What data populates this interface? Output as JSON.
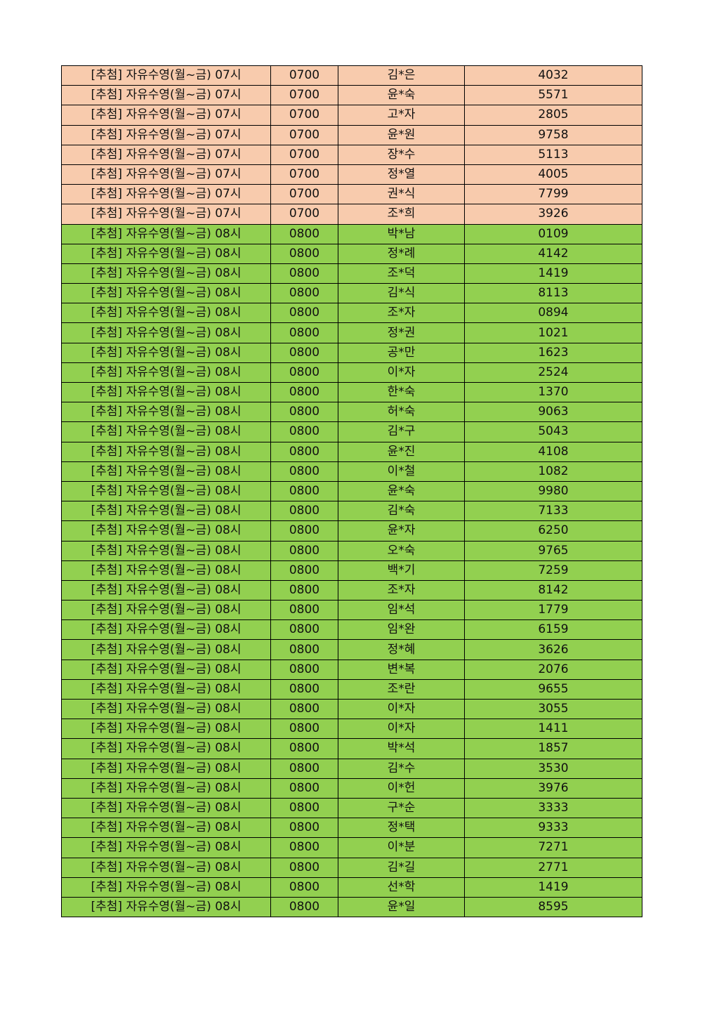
{
  "colors": {
    "group_0700": "#F8CBAD",
    "group_0800": "#92D050"
  },
  "rows": [
    [
      "[추첨] 자유수영(월~금) 07시",
      "0700",
      "김*은",
      "4032"
    ],
    [
      "[추첨] 자유수영(월~금) 07시",
      "0700",
      "윤*숙",
      "5571"
    ],
    [
      "[추첨] 자유수영(월~금) 07시",
      "0700",
      "고*자",
      "2805"
    ],
    [
      "[추첨] 자유수영(월~금) 07시",
      "0700",
      "윤*원",
      "9758"
    ],
    [
      "[추첨] 자유수영(월~금) 07시",
      "0700",
      "장*수",
      "5113"
    ],
    [
      "[추첨] 자유수영(월~금) 07시",
      "0700",
      "정*열",
      "4005"
    ],
    [
      "[추첨] 자유수영(월~금) 07시",
      "0700",
      "권*식",
      "7799"
    ],
    [
      "[추첨] 자유수영(월~금) 07시",
      "0700",
      "조*희",
      "3926"
    ],
    [
      "[추첨] 자유수영(월~금) 08시",
      "0800",
      "박*남",
      "0109"
    ],
    [
      "[추첨] 자유수영(월~금) 08시",
      "0800",
      "정*례",
      "4142"
    ],
    [
      "[추첨] 자유수영(월~금) 08시",
      "0800",
      "조*덕",
      "1419"
    ],
    [
      "[추첨] 자유수영(월~금) 08시",
      "0800",
      "김*식",
      "8113"
    ],
    [
      "[추첨] 자유수영(월~금) 08시",
      "0800",
      "조*자",
      "0894"
    ],
    [
      "[추첨] 자유수영(월~금) 08시",
      "0800",
      "정*권",
      "1021"
    ],
    [
      "[추첨] 자유수영(월~금) 08시",
      "0800",
      "공*만",
      "1623"
    ],
    [
      "[추첨] 자유수영(월~금) 08시",
      "0800",
      "이*자",
      "2524"
    ],
    [
      "[추첨] 자유수영(월~금) 08시",
      "0800",
      "한*숙",
      "1370"
    ],
    [
      "[추첨] 자유수영(월~금) 08시",
      "0800",
      "허*숙",
      "9063"
    ],
    [
      "[추첨] 자유수영(월~금) 08시",
      "0800",
      "김*구",
      "5043"
    ],
    [
      "[추첨] 자유수영(월~금) 08시",
      "0800",
      "윤*진",
      "4108"
    ],
    [
      "[추첨] 자유수영(월~금) 08시",
      "0800",
      "이*철",
      "1082"
    ],
    [
      "[추첨] 자유수영(월~금) 08시",
      "0800",
      "윤*숙",
      "9980"
    ],
    [
      "[추첨] 자유수영(월~금) 08시",
      "0800",
      "김*숙",
      "7133"
    ],
    [
      "[추첨] 자유수영(월~금) 08시",
      "0800",
      "윤*자",
      "6250"
    ],
    [
      "[추첨] 자유수영(월~금) 08시",
      "0800",
      "오*숙",
      "9765"
    ],
    [
      "[추첨] 자유수영(월~금) 08시",
      "0800",
      "백*기",
      "7259"
    ],
    [
      "[추첨] 자유수영(월~금) 08시",
      "0800",
      "조*자",
      "8142"
    ],
    [
      "[추첨] 자유수영(월~금) 08시",
      "0800",
      "임*석",
      "1779"
    ],
    [
      "[추첨] 자유수영(월~금) 08시",
      "0800",
      "임*완",
      "6159"
    ],
    [
      "[추첨] 자유수영(월~금) 08시",
      "0800",
      "정*혜",
      "3626"
    ],
    [
      "[추첨] 자유수영(월~금) 08시",
      "0800",
      "변*복",
      "2076"
    ],
    [
      "[추첨] 자유수영(월~금) 08시",
      "0800",
      "조*란",
      "9655"
    ],
    [
      "[추첨] 자유수영(월~금) 08시",
      "0800",
      "이*자",
      "3055"
    ],
    [
      "[추첨] 자유수영(월~금) 08시",
      "0800",
      "이*자",
      "1411"
    ],
    [
      "[추첨] 자유수영(월~금) 08시",
      "0800",
      "박*석",
      "1857"
    ],
    [
      "[추첨] 자유수영(월~금) 08시",
      "0800",
      "김*수",
      "3530"
    ],
    [
      "[추첨] 자유수영(월~금) 08시",
      "0800",
      "이*헌",
      "3976"
    ],
    [
      "[추첨] 자유수영(월~금) 08시",
      "0800",
      "구*순",
      "3333"
    ],
    [
      "[추첨] 자유수영(월~금) 08시",
      "0800",
      "정*택",
      "9333"
    ],
    [
      "[추첨] 자유수영(월~금) 08시",
      "0800",
      "이*분",
      "7271"
    ],
    [
      "[추첨] 자유수영(월~금) 08시",
      "0800",
      "김*길",
      "2771"
    ],
    [
      "[추첨] 자유수영(월~금) 08시",
      "0800",
      "선*학",
      "1419"
    ],
    [
      "[추첨] 자유수영(월~금) 08시",
      "0800",
      "윤*일",
      "8595"
    ]
  ]
}
